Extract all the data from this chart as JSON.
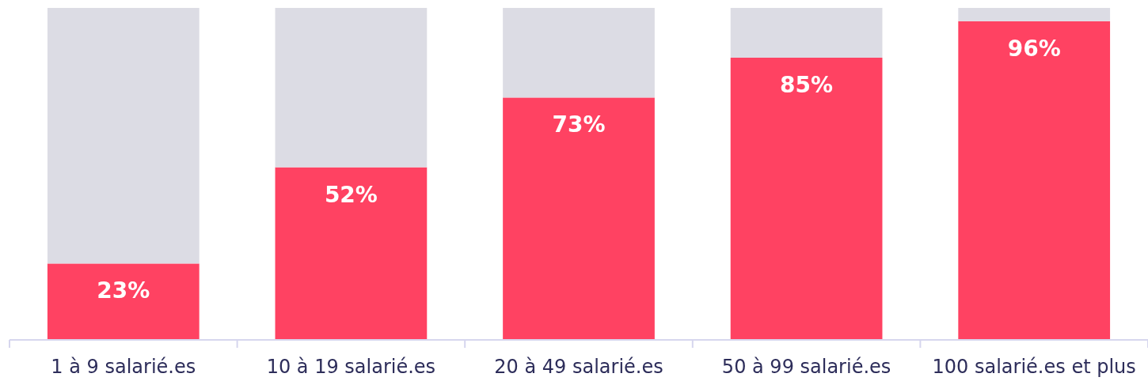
{
  "chart_data": {
    "type": "bar",
    "stacked": true,
    "categories": [
      "1 à 9 salarié.es",
      "10 à 19 salarié.es",
      "20 à 49 salarié.es",
      "50 à 99 salarié.es",
      "100 salarié.es et plus"
    ],
    "series": [
      {
        "color": "#ff4262",
        "values": [
          23,
          52,
          73,
          85,
          96
        ],
        "value_labels": [
          "23%",
          "52%",
          "73%",
          "85%",
          "96%"
        ]
      },
      {
        "color": "#dcdce4",
        "values": [
          77,
          48,
          27,
          15,
          4
        ]
      }
    ],
    "ylim": [
      0,
      100
    ],
    "tick_labels": "x"
  }
}
